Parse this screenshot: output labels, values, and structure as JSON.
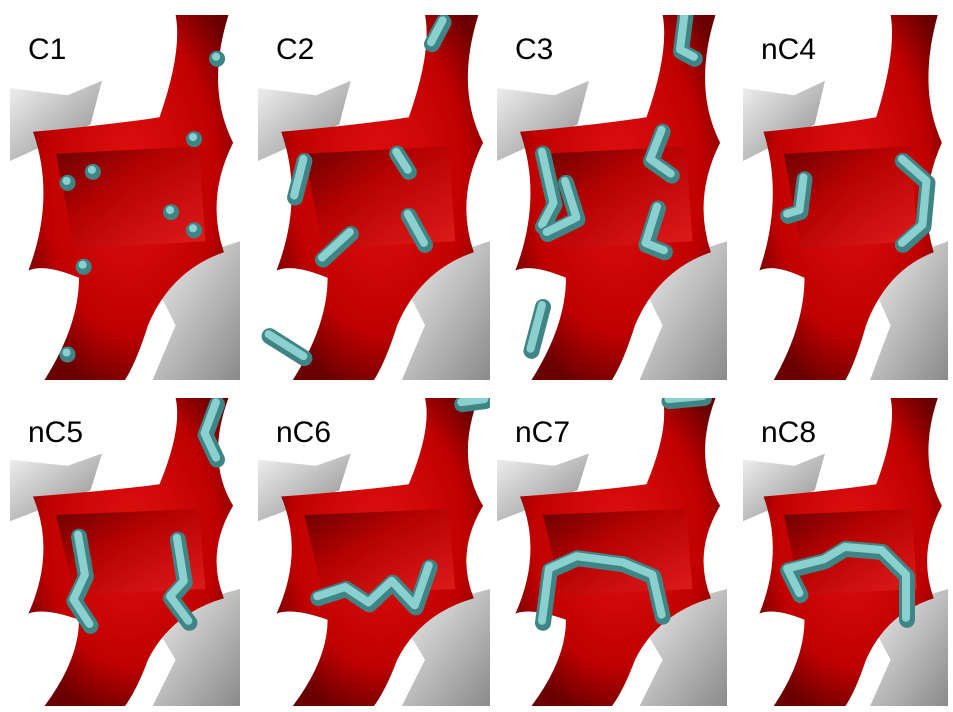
{
  "panels": [
    {
      "label": "C1"
    },
    {
      "label": "C2"
    },
    {
      "label": "C3"
    },
    {
      "label": "nC4"
    },
    {
      "label": "nC5"
    },
    {
      "label": "nC6"
    },
    {
      "label": "nC7"
    },
    {
      "label": "nC8"
    }
  ]
}
